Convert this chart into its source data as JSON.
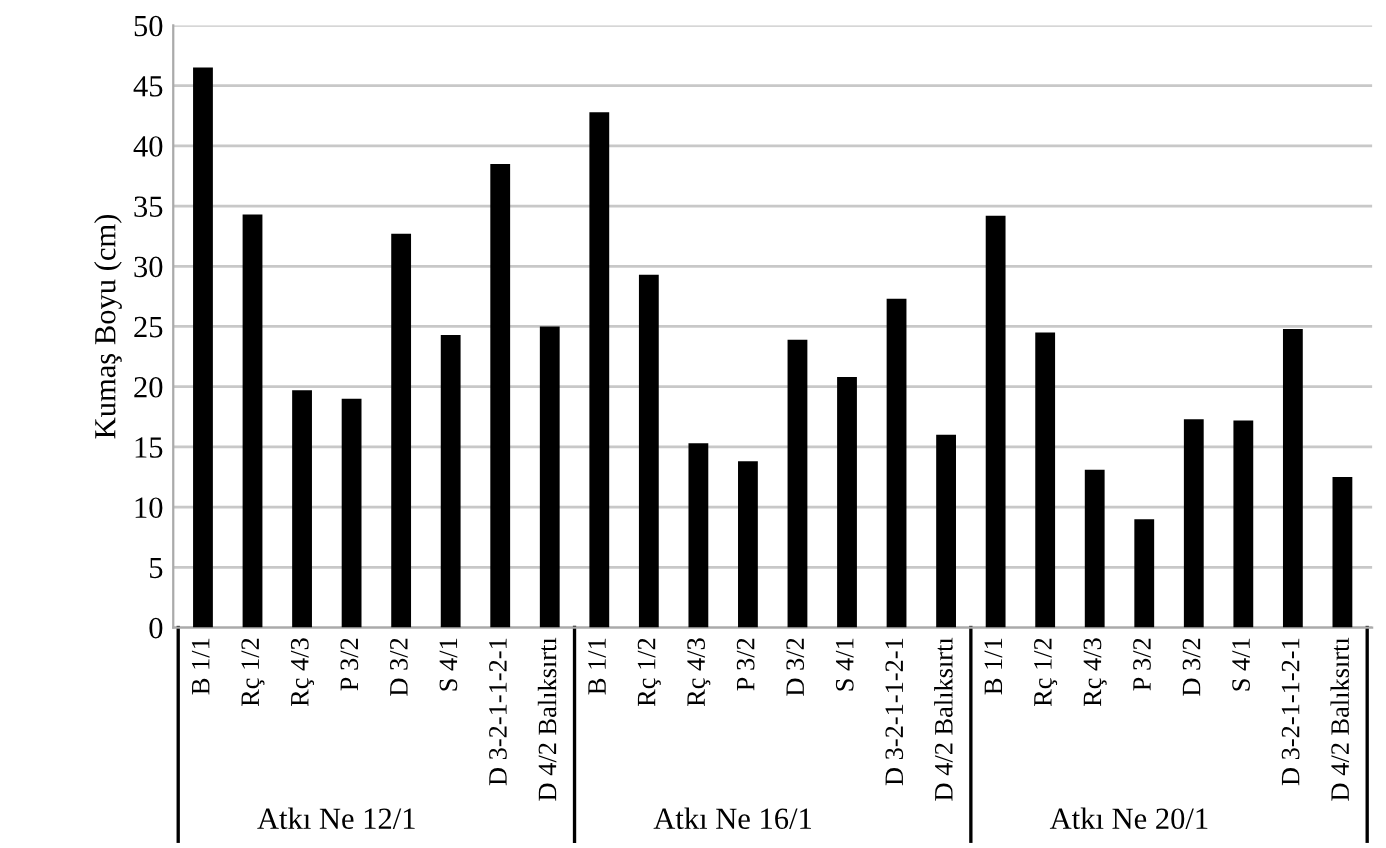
{
  "chart_data": {
    "type": "bar",
    "ylabel": "Kumaş Boyu (cm)",
    "categories": [
      "B 1/1",
      "Rç 1/2",
      "Rç 4/3",
      "P 3/2",
      "D 3/2",
      "S 4/1",
      "D 3-2-1-1-2-1",
      "D 4/2 Balıksırtı",
      "B 1/1",
      "Rç 1/2",
      "Rç 4/3",
      "P 3/2",
      "D 3/2",
      "S 4/1",
      "D 3-2-1-1-2-1",
      "D 4/2 Balıksırtı",
      "B 1/1",
      "Rç 1/2",
      "Rç 4/3",
      "P 3/2",
      "D 3/2",
      "S 4/1",
      "D 3-2-1-1-2-1",
      "D 4/2 Balıksırtı"
    ],
    "values": [
      46.5,
      34.3,
      19.7,
      19,
      32.7,
      24.3,
      38.5,
      25,
      42.8,
      29.3,
      15.3,
      13.8,
      23.9,
      20.8,
      27.3,
      16,
      34.2,
      24.5,
      13.1,
      9,
      17.3,
      17.2,
      24.8,
      12.5
    ],
    "color": "#000000",
    "annotations": [
      "Atkı Ne 12/1",
      "Atkı Ne 16/1",
      "Atkı Ne 20/1"
    ],
    "ylim": [
      0,
      50
    ],
    "yticks": [
      0,
      5,
      10,
      15,
      20,
      25,
      30,
      35,
      40,
      45,
      50
    ],
    "grid": "y",
    "legend": false
  }
}
